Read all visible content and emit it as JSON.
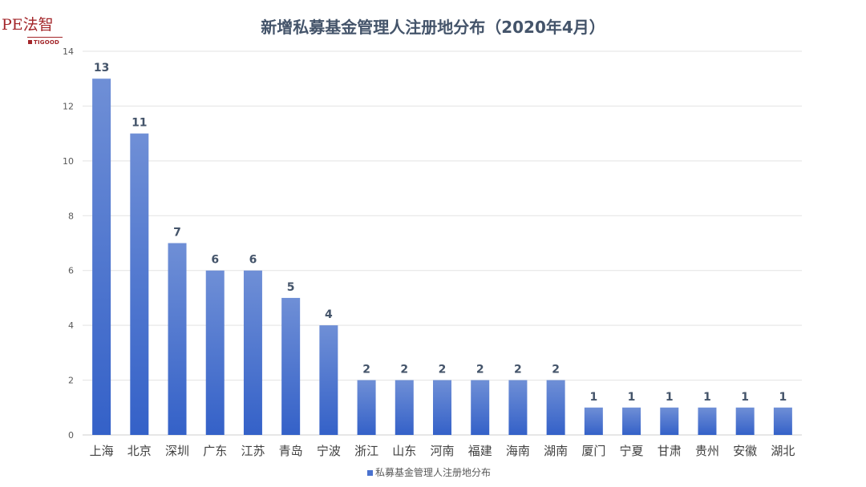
{
  "logo": {
    "main": "PE法智",
    "sub": "TIGOOD"
  },
  "chart_data": {
    "type": "bar",
    "title": "新增私募基金管理人注册地分布（2020年4月）",
    "categories": [
      "上海",
      "北京",
      "深圳",
      "广东",
      "江苏",
      "青岛",
      "宁波",
      "浙江",
      "山东",
      "河南",
      "福建",
      "海南",
      "湖南",
      "厦门",
      "宁夏",
      "甘肃",
      "贵州",
      "安徽",
      "湖北"
    ],
    "series": [
      {
        "name": "私募基金管理人注册地分布",
        "values": [
          13,
          11,
          7,
          6,
          6,
          5,
          4,
          2,
          2,
          2,
          2,
          2,
          2,
          1,
          1,
          1,
          1,
          1,
          1
        ]
      }
    ],
    "ylim": [
      0,
      14
    ],
    "yticks": [
      0,
      2,
      4,
      6,
      8,
      10,
      12,
      14
    ],
    "grid": true,
    "legend": "bottom",
    "data_labels": true,
    "colors": {
      "bar_top": "#6f8fd6",
      "bar_bottom": "#3461c8",
      "grid": "#e3e3e3",
      "title": "#44546a"
    }
  }
}
